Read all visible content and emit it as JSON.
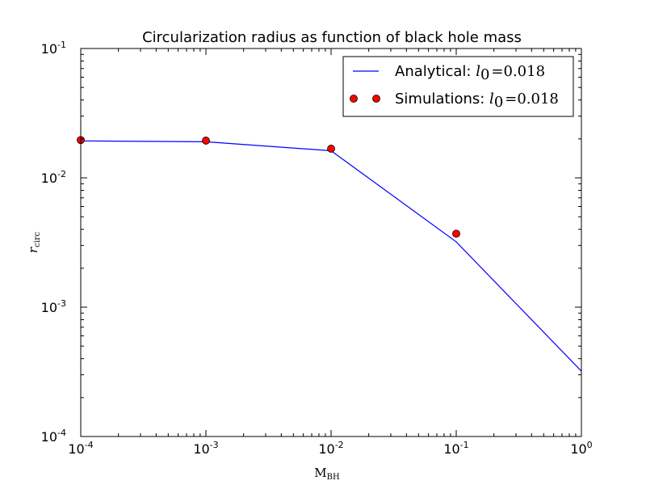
{
  "chart_data": {
    "type": "line",
    "title": "Circularization radius as function of black hole mass",
    "xlabel": {
      "main": "M",
      "sub": "BH"
    },
    "ylabel": {
      "main": "r",
      "sub": "circ"
    },
    "xscale": "log",
    "yscale": "log",
    "xlim": [
      0.0001,
      1
    ],
    "ylim": [
      0.0001,
      0.1
    ],
    "x_ticks": [
      {
        "value": 0.0001,
        "base": "10",
        "exp": "-4"
      },
      {
        "value": 0.001,
        "base": "10",
        "exp": "-3"
      },
      {
        "value": 0.01,
        "base": "10",
        "exp": "-2"
      },
      {
        "value": 0.1,
        "base": "10",
        "exp": "-1"
      },
      {
        "value": 1,
        "base": "10",
        "exp": "0"
      }
    ],
    "y_ticks": [
      {
        "value": 0.0001,
        "base": "10",
        "exp": "-4"
      },
      {
        "value": 0.001,
        "base": "10",
        "exp": "-3"
      },
      {
        "value": 0.01,
        "base": "10",
        "exp": "-2"
      },
      {
        "value": 0.1,
        "base": "10",
        "exp": "-1"
      }
    ],
    "legend_position": "top-right",
    "grid": false,
    "series": [
      {
        "name": "Analytical",
        "name_prefix": "Analytical: ",
        "param_symbol": "l",
        "param_sub": "0",
        "param_eq": "=0.018",
        "kind": "line",
        "color": "#0000ff",
        "x": [
          0.0001,
          0.001,
          0.01,
          0.1,
          1
        ],
        "y": [
          0.0193,
          0.019,
          0.0162,
          0.0032,
          0.00032
        ]
      },
      {
        "name": "Simulations",
        "name_prefix": "Simulations: ",
        "param_symbol": "l",
        "param_sub": "0",
        "param_eq": "=0.018",
        "kind": "markers",
        "color": "#ff0000",
        "x": [
          0.0001,
          0.001,
          0.01,
          0.1
        ],
        "y": [
          0.0196,
          0.0194,
          0.0168,
          0.0037
        ]
      }
    ]
  }
}
